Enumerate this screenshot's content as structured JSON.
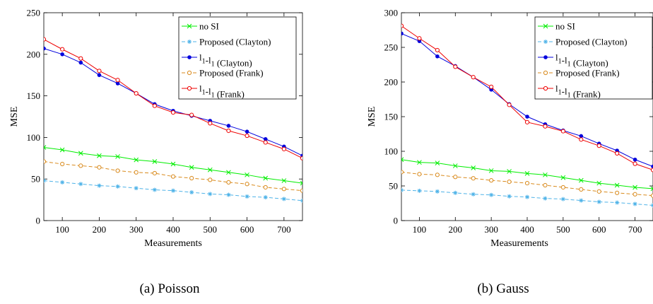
{
  "chart_data": [
    {
      "type": "line",
      "caption": "(a) Poisson",
      "xlabel": "Measurements",
      "ylabel": "MSE",
      "xlim": [
        50,
        750
      ],
      "ylim": [
        0,
        250
      ],
      "xticks": [
        100,
        200,
        300,
        400,
        500,
        600,
        700
      ],
      "yticks": [
        0,
        50,
        100,
        150,
        200,
        250
      ],
      "grid": false,
      "legend_position": "top-right",
      "x": [
        50,
        100,
        150,
        200,
        250,
        300,
        350,
        400,
        450,
        500,
        550,
        600,
        650,
        700,
        750
      ],
      "series": [
        {
          "name": "no SI",
          "color": "#00ee00",
          "marker": "x",
          "dash": false,
          "values": [
            88,
            85,
            81,
            78,
            77,
            73,
            71,
            68,
            64,
            61,
            58,
            55,
            51,
            48,
            45
          ]
        },
        {
          "name": "Proposed (Clayton)",
          "color": "#4fb3e8",
          "marker": "star",
          "dash": true,
          "values": [
            48,
            46,
            44,
            42,
            41,
            39,
            37,
            36,
            34,
            32,
            31,
            29,
            28,
            26,
            24
          ]
        },
        {
          "name": "l1-l1 (Clayton)",
          "color": "#0000dd",
          "marker": "dot",
          "dash": false,
          "values": [
            207,
            200,
            190,
            175,
            165,
            153,
            140,
            132,
            126,
            120,
            114,
            107,
            98,
            89,
            78
          ]
        },
        {
          "name": "Proposed (Frank)",
          "color": "#d98a1c",
          "marker": "circle",
          "dash": true,
          "values": [
            71,
            68,
            66,
            64,
            60,
            58,
            57,
            53,
            51,
            49,
            46,
            44,
            40,
            38,
            36
          ]
        },
        {
          "name": "l1-l1 (Frank)",
          "color": "#ee0000",
          "marker": "circle",
          "dash": false,
          "values": [
            218,
            206,
            195,
            180,
            169,
            153,
            138,
            130,
            127,
            117,
            108,
            102,
            94,
            86,
            75
          ]
        }
      ]
    },
    {
      "type": "line",
      "caption": "(b) Gauss",
      "xlabel": "Measurements",
      "ylabel": "MSE",
      "xlim": [
        50,
        750
      ],
      "ylim": [
        0,
        300
      ],
      "xticks": [
        100,
        200,
        300,
        400,
        500,
        600,
        700
      ],
      "yticks": [
        0,
        50,
        100,
        150,
        200,
        250,
        300
      ],
      "grid": false,
      "legend_position": "top-right",
      "x": [
        50,
        100,
        150,
        200,
        250,
        300,
        350,
        400,
        450,
        500,
        550,
        600,
        650,
        700,
        750
      ],
      "series": [
        {
          "name": "no SI",
          "color": "#00ee00",
          "marker": "x",
          "dash": false,
          "values": [
            88,
            84,
            83,
            79,
            76,
            72,
            71,
            68,
            66,
            62,
            58,
            54,
            51,
            48,
            46
          ]
        },
        {
          "name": "Proposed (Clayton)",
          "color": "#4fb3e8",
          "marker": "star",
          "dash": true,
          "values": [
            44,
            43,
            42,
            40,
            38,
            37,
            35,
            34,
            32,
            31,
            29,
            27,
            26,
            24,
            22
          ]
        },
        {
          "name": "l1-l1 (Clayton)",
          "color": "#0000dd",
          "marker": "dot",
          "dash": false,
          "values": [
            270,
            259,
            237,
            223,
            207,
            189,
            168,
            150,
            139,
            130,
            122,
            111,
            101,
            88,
            78
          ]
        },
        {
          "name": "Proposed (Frank)",
          "color": "#d98a1c",
          "marker": "circle",
          "dash": true,
          "values": [
            70,
            67,
            66,
            63,
            61,
            58,
            56,
            54,
            51,
            48,
            45,
            42,
            40,
            38,
            36
          ]
        },
        {
          "name": "l1-l1 (Frank)",
          "color": "#ee0000",
          "marker": "circle",
          "dash": false,
          "values": [
            281,
            263,
            246,
            222,
            207,
            193,
            167,
            142,
            136,
            129,
            117,
            108,
            97,
            82,
            73
          ]
        }
      ]
    }
  ]
}
